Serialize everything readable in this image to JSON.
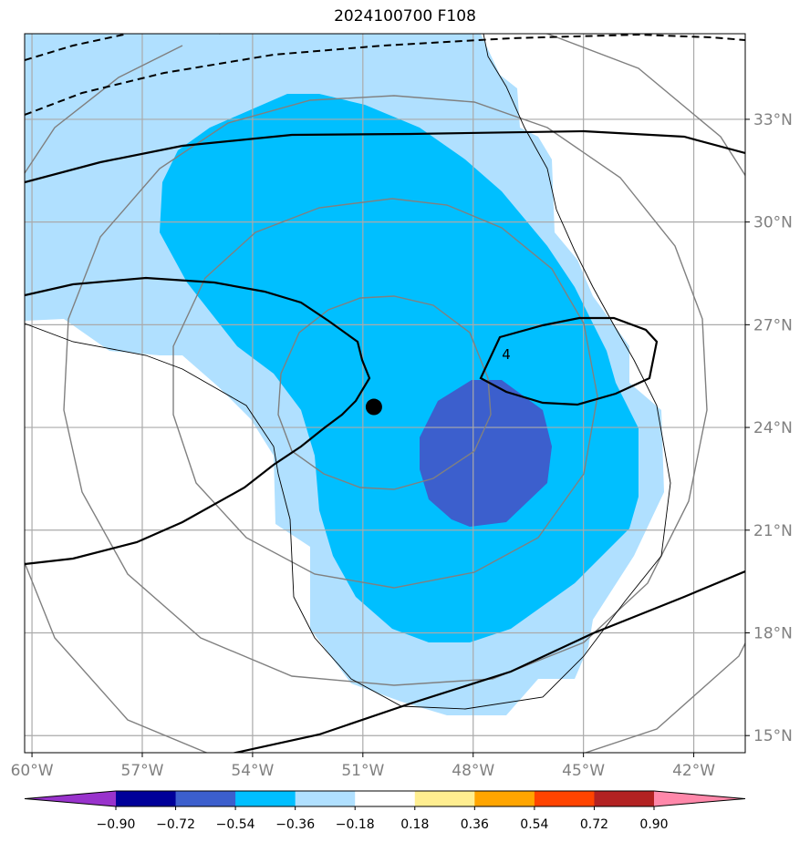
{
  "title": "2024100700 F108",
  "map": {
    "lon_range": [
      -60.2,
      -40.6
    ],
    "lat_range": [
      14.5,
      35.5
    ],
    "lon_ticks": [
      {
        "value": -60,
        "label": "60°W"
      },
      {
        "value": -57,
        "label": "57°W"
      },
      {
        "value": -54,
        "label": "54°W"
      },
      {
        "value": -51,
        "label": "51°W"
      },
      {
        "value": -48,
        "label": "48°W"
      },
      {
        "value": -45,
        "label": "45°W"
      },
      {
        "value": -42,
        "label": "42°W"
      }
    ],
    "lat_ticks": [
      {
        "value": 15,
        "label": "15°N"
      },
      {
        "value": 18,
        "label": "18°N"
      },
      {
        "value": 21,
        "label": "21°N"
      },
      {
        "value": 24,
        "label": "24°N"
      },
      {
        "value": 27,
        "label": "27°N"
      },
      {
        "value": 30,
        "label": "30°N"
      },
      {
        "value": 33,
        "label": "33°N"
      }
    ],
    "grid": true,
    "storm_center": {
      "lon": -50.7,
      "lat": 24.6
    },
    "contour_label": {
      "text": "4",
      "lon": -47.1,
      "lat": 26.0
    },
    "range_rings_center": {
      "lon": -50.1,
      "lat": 24.6
    }
  },
  "colorbar": {
    "ticks": [
      "−0.90",
      "−0.72",
      "−0.54",
      "−0.36",
      "−0.18",
      "0.18",
      "0.36",
      "0.54",
      "0.72",
      "0.90"
    ],
    "colors": [
      "#9933cc",
      "#000099",
      "#3c5fcd",
      "#00bfff",
      "#b0e0ff",
      "#ffffff",
      "#ffee90",
      "#ffa500",
      "#ff4400",
      "#b22222",
      "#ff88aa"
    ]
  }
}
